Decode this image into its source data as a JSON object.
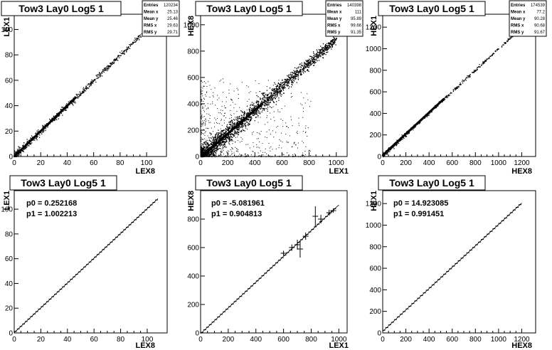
{
  "chart_data": [
    {
      "type": "scatter",
      "title": "Tow3 Lay0 Log5 1",
      "xlabel": "LEX8",
      "ylabel": "LEX1",
      "xlim": [
        0,
        115
      ],
      "ylim": [
        0,
        112
      ],
      "xticks": [
        0,
        20,
        40,
        60,
        80,
        100
      ],
      "yticks": [
        0,
        20,
        40,
        60,
        80,
        100
      ],
      "stats": [
        {
          "label": "Entries",
          "value": "120234"
        },
        {
          "label": "Mean x",
          "value": "25.13"
        },
        {
          "label": "Mean y",
          "value": "25.46"
        },
        {
          "label": "RMS x",
          "value": "29.63"
        },
        {
          "label": "RMS y",
          "value": "29.71"
        }
      ],
      "trend": {
        "slope": 1.0,
        "intercept": 0.25,
        "x_max": 103
      },
      "scatter_spread": 1.2,
      "noise_points": 0,
      "point_count": 700
    },
    {
      "type": "scatter",
      "title": "Tow3 Lay0 Log5 1",
      "xlabel": "LEX1",
      "ylabel": "HEX8",
      "xlim": [
        0,
        1080
      ],
      "ylim": [
        0,
        1080
      ],
      "xticks": [
        0,
        200,
        400,
        600,
        800,
        1000
      ],
      "yticks": [
        0,
        200,
        400,
        600,
        800,
        1000
      ],
      "stats": [
        {
          "label": "Entries",
          "value": "140398"
        },
        {
          "label": "Mean x",
          "value": "111"
        },
        {
          "label": "Mean y",
          "value": "95.89"
        },
        {
          "label": "RMS x",
          "value": "99.66"
        },
        {
          "label": "RMS y",
          "value": "91.35"
        }
      ],
      "trend": {
        "slope": 0.9,
        "intercept": -5,
        "x_max": 1000
      },
      "scatter_spread": 30,
      "noise_points": 700,
      "point_count": 2200
    },
    {
      "type": "scatter",
      "title": "Tow3 Lay0 Log5 1",
      "xlabel": "HEX8",
      "ylabel": "HEX1",
      "xlim": [
        0,
        1320
      ],
      "ylim": [
        0,
        1320
      ],
      "xticks": [
        0,
        200,
        400,
        600,
        800,
        1000,
        1200
      ],
      "yticks": [
        0,
        200,
        400,
        600,
        800,
        1000,
        1200
      ],
      "stats": [
        {
          "label": "Entries",
          "value": "174539"
        },
        {
          "label": "Mean x",
          "value": "77.2"
        },
        {
          "label": "Mean y",
          "value": "90.28"
        },
        {
          "label": "RMS x",
          "value": "90.68"
        },
        {
          "label": "RMS y",
          "value": "91.67"
        }
      ],
      "trend": {
        "slope": 0.99,
        "intercept": 15,
        "x_max": 1180
      },
      "scatter_spread": 8,
      "noise_points": 0,
      "point_count": 500
    },
    {
      "type": "line",
      "title": "Tow3 Lay0 Log5 1",
      "xlabel": "LEX8",
      "ylabel": "LEX1",
      "xlim": [
        0,
        115
      ],
      "ylim": [
        0,
        115
      ],
      "xticks": [
        0,
        20,
        40,
        60,
        80,
        100
      ],
      "yticks": [
        0,
        20,
        40,
        60,
        80,
        100
      ],
      "fit": {
        "p0": "p0 = 0.252168",
        "p1": "p1 = 1.002213",
        "intercept": 0.252168,
        "slope": 1.002213,
        "x_range": [
          0,
          108
        ]
      },
      "profile": {
        "x_start": 1,
        "x_end": 108,
        "step": 2,
        "width": 2
      }
    },
    {
      "type": "line",
      "title": "Tow3 Lay0 Log5 1",
      "xlabel": "LEX1",
      "ylabel": "HEX8",
      "xlim": [
        0,
        1060
      ],
      "ylim": [
        0,
        1000
      ],
      "xticks": [
        0,
        200,
        400,
        600,
        800,
        1000
      ],
      "yticks": [
        0,
        200,
        400,
        600,
        800
      ],
      "fit": {
        "p0": "p0 = -5.081961",
        "p1": "p1 = 0.904813",
        "intercept": -5.081961,
        "slope": 0.904813,
        "x_range": [
          0,
          1000
        ]
      },
      "profile": {
        "x_start": 10,
        "x_end": 980,
        "step": 20,
        "width": 20
      },
      "error_bars": [
        [
          600,
          560,
          18
        ],
        [
          660,
          600,
          22
        ],
        [
          700,
          620,
          35
        ],
        [
          720,
          590,
          60
        ],
        [
          760,
          680,
          25
        ],
        [
          830,
          820,
          70
        ],
        [
          870,
          800,
          30
        ],
        [
          930,
          845,
          20
        ],
        [
          960,
          860,
          15
        ]
      ]
    },
    {
      "type": "line",
      "title": "Tow3 Lay0 Log5 1",
      "xlabel": "HEX8",
      "ylabel": "HEX1",
      "xlim": [
        0,
        1320
      ],
      "ylim": [
        0,
        1320
      ],
      "xticks": [
        0,
        200,
        400,
        600,
        800,
        1000,
        1200
      ],
      "yticks": [
        0,
        200,
        400,
        600,
        800,
        1000,
        1200
      ],
      "fit": {
        "p0": "p0 = 14.923085",
        "p1": "p1 = 0.991451",
        "intercept": 14.923085,
        "slope": 0.991451,
        "x_range": [
          0,
          1200
        ]
      },
      "profile": {
        "x_start": 10,
        "x_end": 1190,
        "step": 25,
        "width": 25
      }
    }
  ]
}
